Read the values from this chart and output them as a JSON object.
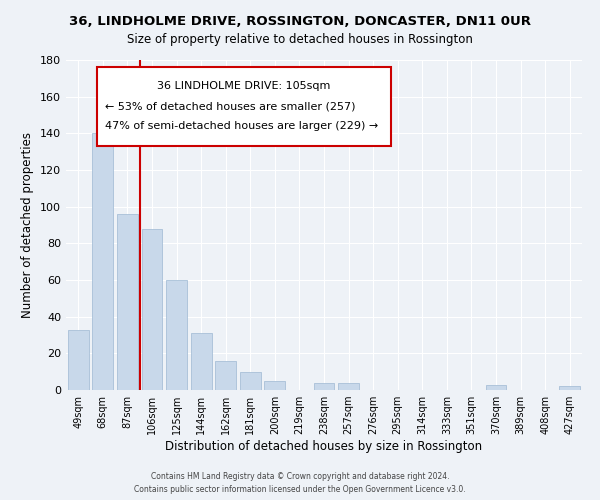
{
  "title": "36, LINDHOLME DRIVE, ROSSINGTON, DONCASTER, DN11 0UR",
  "subtitle": "Size of property relative to detached houses in Rossington",
  "xlabel": "Distribution of detached houses by size in Rossington",
  "ylabel": "Number of detached properties",
  "bar_color": "#c8d8ea",
  "bar_edge_color": "#a8c0d8",
  "categories": [
    "49sqm",
    "68sqm",
    "87sqm",
    "106sqm",
    "125sqm",
    "144sqm",
    "162sqm",
    "181sqm",
    "200sqm",
    "219sqm",
    "238sqm",
    "257sqm",
    "276sqm",
    "295sqm",
    "314sqm",
    "333sqm",
    "351sqm",
    "370sqm",
    "389sqm",
    "408sqm",
    "427sqm"
  ],
  "values": [
    33,
    140,
    96,
    88,
    60,
    31,
    16,
    10,
    5,
    0,
    4,
    4,
    0,
    0,
    0,
    0,
    0,
    3,
    0,
    0,
    2
  ],
  "ylim": [
    0,
    180
  ],
  "yticks": [
    0,
    20,
    40,
    60,
    80,
    100,
    120,
    140,
    160,
    180
  ],
  "property_line_color": "#cc0000",
  "annotation_title": "36 LINDHOLME DRIVE: 105sqm",
  "annotation_line1": "← 53% of detached houses are smaller (257)",
  "annotation_line2": "47% of semi-detached houses are larger (229) →",
  "annotation_box_color": "#ffffff",
  "annotation_box_edge": "#cc0000",
  "footer1": "Contains HM Land Registry data © Crown copyright and database right 2024.",
  "footer2": "Contains public sector information licensed under the Open Government Licence v3.0.",
  "background_color": "#eef2f7",
  "grid_color": "#ffffff",
  "title_fontsize": 9.5,
  "subtitle_fontsize": 8.5
}
